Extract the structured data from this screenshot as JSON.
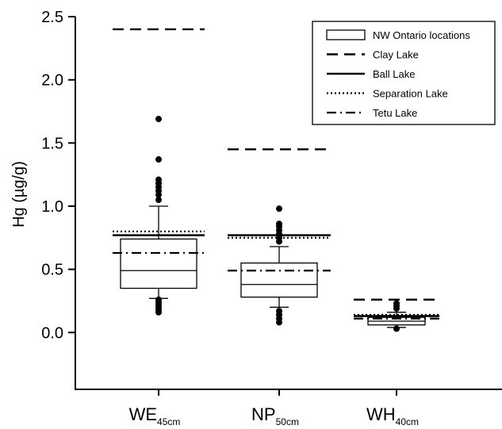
{
  "chart_data": {
    "type": "box",
    "ylabel": "Hg (µg/g)",
    "ylim": [
      -0.45,
      2.5
    ],
    "yticks": [
      "2.5",
      "2.0",
      "1.5",
      "1.0",
      "0.5",
      "0.0"
    ],
    "ytick_values": [
      2.5,
      2.0,
      1.5,
      1.0,
      0.5,
      0.0
    ],
    "legend_position": "top-right",
    "legend": [
      {
        "label": "NW Ontario locations",
        "style": "box"
      },
      {
        "label": "Clay Lake",
        "style": "dashed"
      },
      {
        "label": "Ball Lake",
        "style": "solid"
      },
      {
        "label": "Separation Lake",
        "style": "dotted"
      },
      {
        "label": "Tetu Lake",
        "style": "dashdot"
      }
    ],
    "categories": [
      {
        "name": "WE",
        "sub": "45cm",
        "box": {
          "whisker_low": 0.27,
          "q1": 0.35,
          "median": 0.49,
          "q3": 0.74,
          "whisker_high": 1.0
        },
        "outliers": [
          0.16,
          0.18,
          0.2,
          0.22,
          0.24,
          0.26,
          1.05,
          1.09,
          1.12,
          1.15,
          1.18,
          1.21,
          1.37,
          1.69
        ],
        "lines": {
          "Clay Lake": 2.4,
          "Ball Lake": 0.77,
          "Separation Lake": 0.8,
          "Tetu Lake": 0.63
        }
      },
      {
        "name": "NP",
        "sub": "50cm",
        "box": {
          "whisker_low": 0.2,
          "q1": 0.28,
          "median": 0.38,
          "q3": 0.55,
          "whisker_high": 0.68
        },
        "outliers": [
          0.08,
          0.11,
          0.14,
          0.17,
          0.72,
          0.75,
          0.78,
          0.81,
          0.84,
          0.86,
          0.98
        ],
        "lines": {
          "Clay Lake": 1.45,
          "Ball Lake": 0.77,
          "Separation Lake": 0.75,
          "Tetu Lake": 0.49
        }
      },
      {
        "name": "WH",
        "sub": "40cm",
        "box": {
          "whisker_low": 0.04,
          "q1": 0.06,
          "median": 0.09,
          "q3": 0.12,
          "whisker_high": 0.16
        },
        "outliers": [
          0.03,
          0.19,
          0.21,
          0.23
        ],
        "lines": {
          "Clay Lake": 0.26,
          "Ball Lake": 0.13,
          "Separation Lake": 0.14,
          "Tetu Lake": 0.11
        }
      }
    ]
  }
}
